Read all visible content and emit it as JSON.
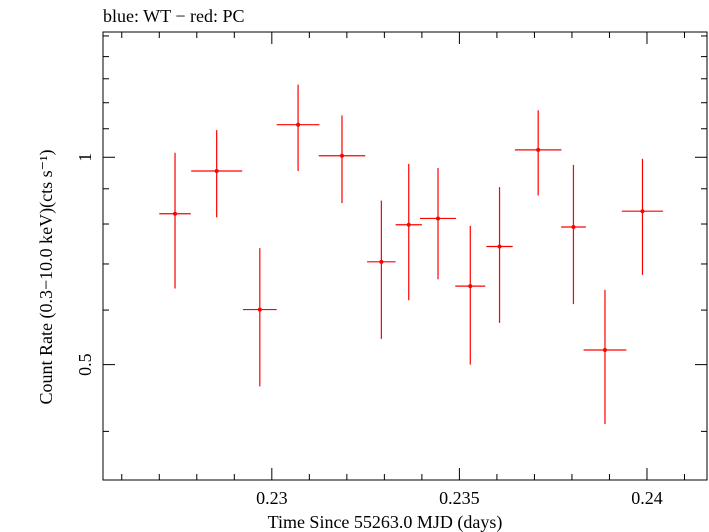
{
  "chart_data": {
    "type": "scatter",
    "title": "blue: WT − red: PC",
    "xlabel": "Time Since 55263.0 MJD (days)",
    "ylabel": "Count Rate (0.3−10.0 keV)(cts s⁻¹)",
    "x_scale": "linear",
    "y_scale": "log",
    "xlim": [
      0.2255,
      0.2416
    ],
    "ylim": [
      0.34,
      1.52
    ],
    "x_ticks": [
      0.23,
      0.235,
      0.24
    ],
    "x_tick_labels": [
      "0.23",
      "0.235",
      "0.24"
    ],
    "y_ticks": [
      0.5,
      1
    ],
    "y_tick_labels": [
      "0.5",
      "1"
    ],
    "grid": false,
    "series": [
      {
        "color": "#ff0000",
        "points": [
          {
            "x": 0.22742,
            "y": 0.828,
            "xerr": 0.00042,
            "ylo": 0.645,
            "yhi": 1.015
          },
          {
            "x": 0.22853,
            "y": 0.955,
            "xerr": 0.00068,
            "ylo": 0.818,
            "yhi": 1.095
          },
          {
            "x": 0.22968,
            "y": 0.601,
            "xerr": 0.00045,
            "ylo": 0.465,
            "yhi": 0.738
          },
          {
            "x": 0.2307,
            "y": 1.115,
            "xerr": 0.00057,
            "ylo": 0.955,
            "yhi": 1.275
          },
          {
            "x": 0.23187,
            "y": 1.005,
            "xerr": 0.00062,
            "ylo": 0.858,
            "yhi": 1.15
          },
          {
            "x": 0.23292,
            "y": 0.705,
            "xerr": 0.00038,
            "ylo": 0.545,
            "yhi": 0.865
          },
          {
            "x": 0.23365,
            "y": 0.798,
            "xerr": 0.00035,
            "ylo": 0.62,
            "yhi": 0.978
          },
          {
            "x": 0.23443,
            "y": 0.815,
            "xerr": 0.00048,
            "ylo": 0.665,
            "yhi": 0.965
          },
          {
            "x": 0.23529,
            "y": 0.65,
            "xerr": 0.0004,
            "ylo": 0.5,
            "yhi": 0.795
          },
          {
            "x": 0.23607,
            "y": 0.742,
            "xerr": 0.00035,
            "ylo": 0.575,
            "yhi": 0.905
          },
          {
            "x": 0.2371,
            "y": 1.025,
            "xerr": 0.00062,
            "ylo": 0.88,
            "yhi": 1.17
          },
          {
            "x": 0.23804,
            "y": 0.792,
            "xerr": 0.00033,
            "ylo": 0.612,
            "yhi": 0.975
          },
          {
            "x": 0.23888,
            "y": 0.525,
            "xerr": 0.00057,
            "ylo": 0.41,
            "yhi": 0.642
          },
          {
            "x": 0.23988,
            "y": 0.835,
            "xerr": 0.00055,
            "ylo": 0.675,
            "yhi": 0.995
          }
        ]
      }
    ]
  }
}
